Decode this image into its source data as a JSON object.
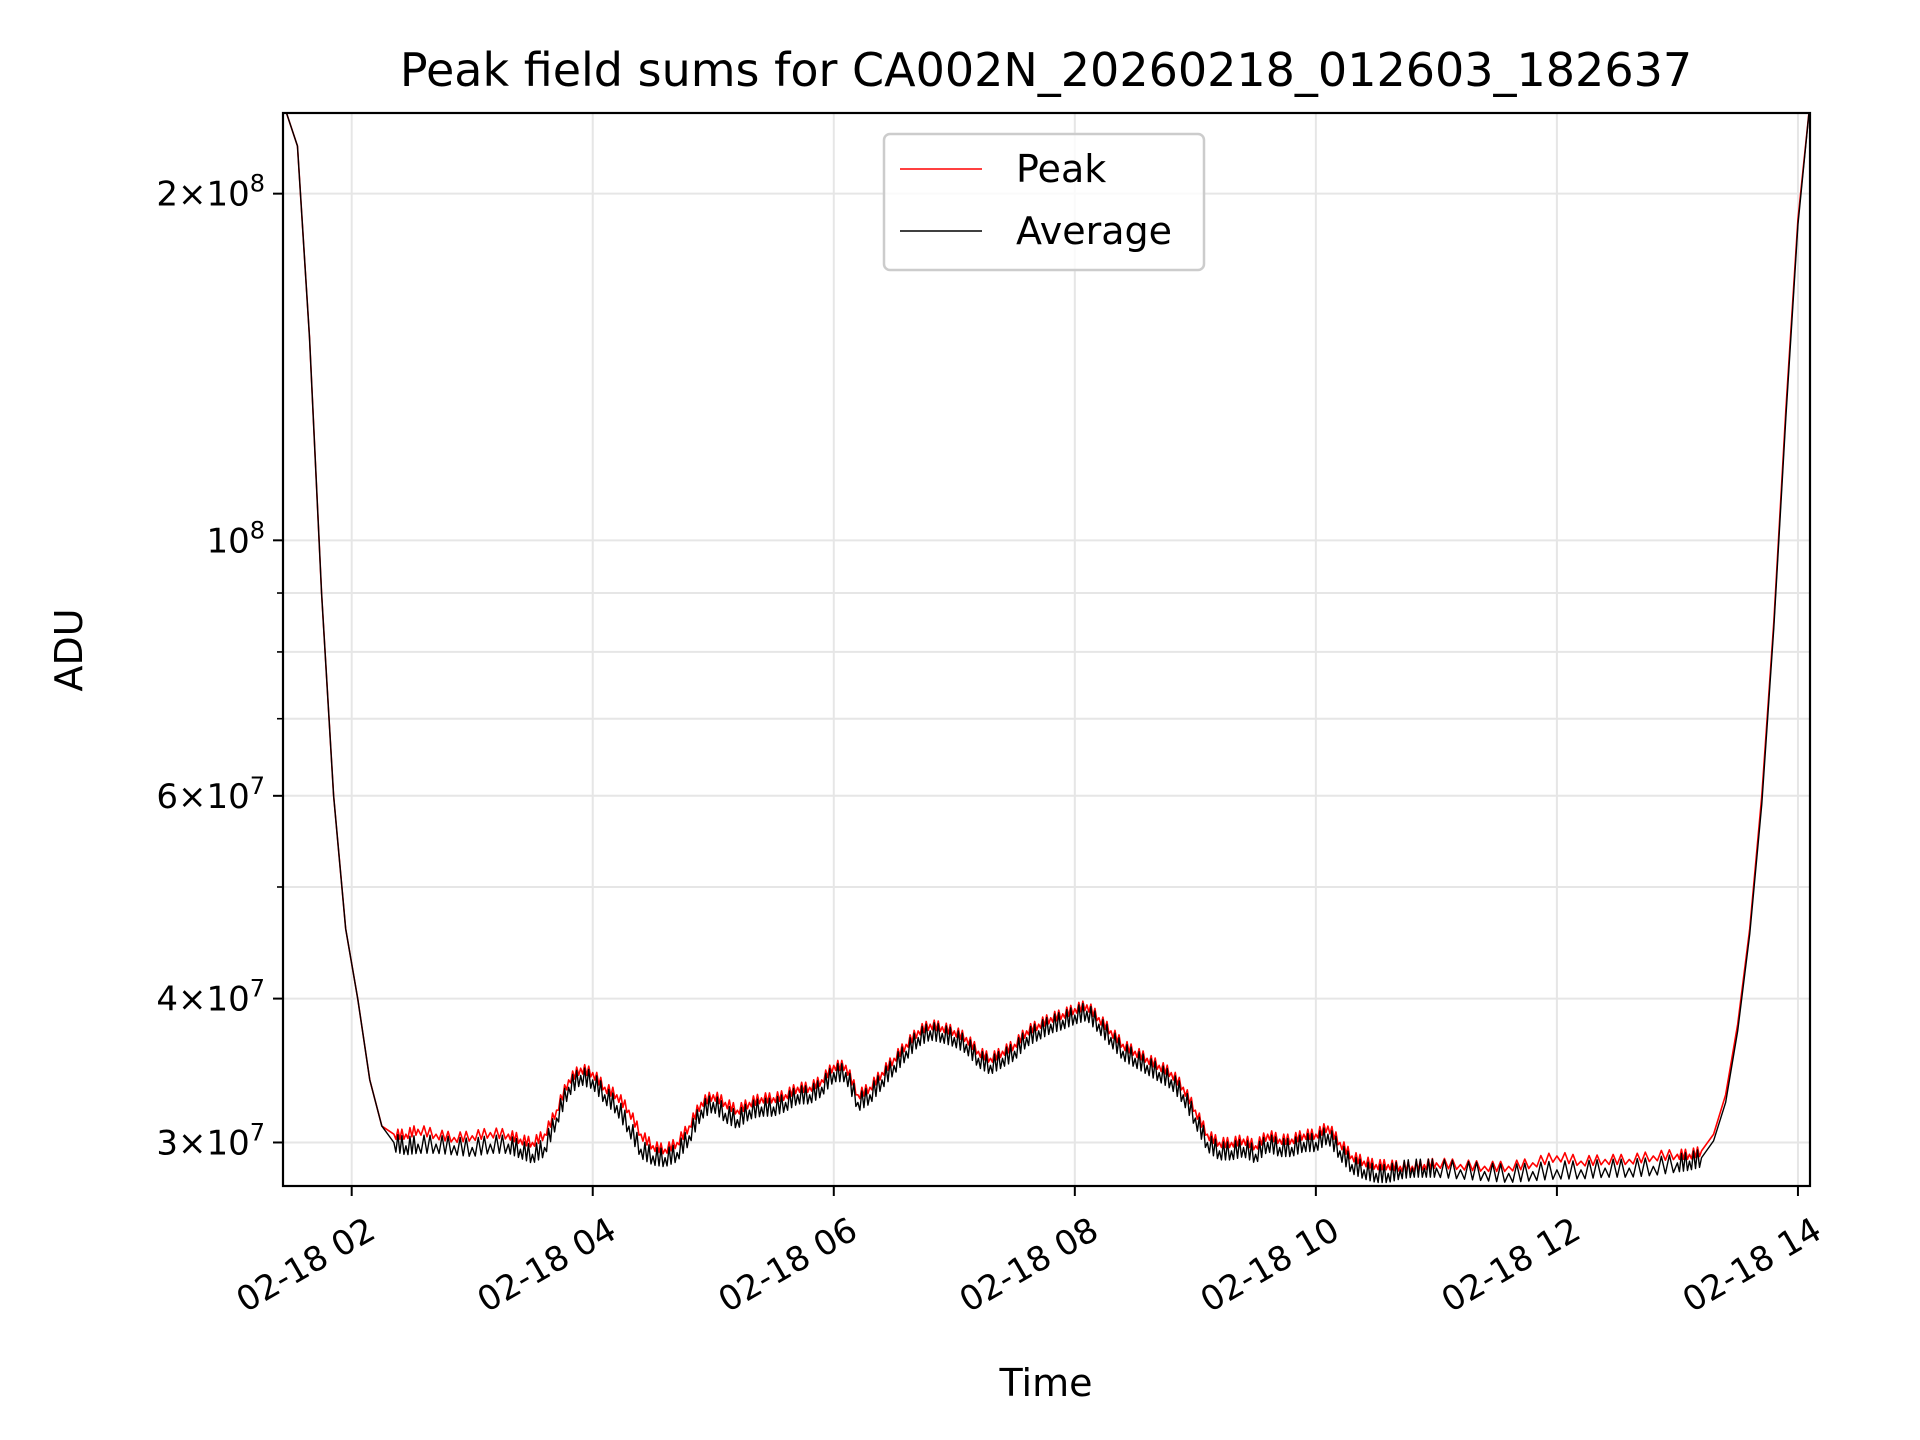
{
  "chart_data": {
    "type": "line",
    "title": "Peak field sums for CA002N_20260218_012603_182637",
    "xlabel": "Time",
    "ylabel": "ADU",
    "yscale": "log",
    "xlim_hours": [
      1.43,
      14.1
    ],
    "ylim": [
      27500000,
      235000000
    ],
    "x_ticks": [
      {
        "value": 2,
        "label": "02-18 02"
      },
      {
        "value": 4,
        "label": "02-18 04"
      },
      {
        "value": 6,
        "label": "02-18 06"
      },
      {
        "value": 8,
        "label": "02-18 08"
      },
      {
        "value": 10,
        "label": "02-18 10"
      },
      {
        "value": 12,
        "label": "02-18 12"
      },
      {
        "value": 14,
        "label": "02-18 14"
      }
    ],
    "y_ticks": [
      {
        "value": 200000000,
        "mantissa": "2",
        "exponent": "8"
      },
      {
        "value": 100000000,
        "mantissa": "",
        "exponent": "8"
      },
      {
        "value": 60000000,
        "mantissa": "6",
        "exponent": "7"
      },
      {
        "value": 40000000,
        "mantissa": "4",
        "exponent": "7"
      },
      {
        "value": 30000000,
        "mantissa": "3",
        "exponent": "7"
      }
    ],
    "y_minor_grid": [
      90000000,
      80000000,
      70000000,
      50000000
    ],
    "grid": true,
    "legend_position": "top-center",
    "series": [
      {
        "name": "Peak",
        "color": "#ff0000",
        "x": [
          1.43,
          1.55,
          1.65,
          1.75,
          1.85,
          1.95,
          2.05,
          2.15,
          2.25,
          2.35,
          2.45,
          2.55,
          2.7,
          2.85,
          3.0,
          3.15,
          3.3,
          3.4,
          3.5,
          3.6,
          3.7,
          3.8,
          3.9,
          4.0,
          4.1,
          4.2,
          4.3,
          4.4,
          4.5,
          4.6,
          4.7,
          4.8,
          4.9,
          5.0,
          5.1,
          5.2,
          5.3,
          5.4,
          5.5,
          5.6,
          5.7,
          5.8,
          5.9,
          6.0,
          6.1,
          6.2,
          6.3,
          6.4,
          6.5,
          6.6,
          6.7,
          6.8,
          6.9,
          7.0,
          7.1,
          7.2,
          7.3,
          7.4,
          7.5,
          7.6,
          7.7,
          7.8,
          7.9,
          8.0,
          8.1,
          8.2,
          8.3,
          8.4,
          8.5,
          8.6,
          8.7,
          8.8,
          8.9,
          9.0,
          9.1,
          9.2,
          9.3,
          9.4,
          9.5,
          9.6,
          9.7,
          9.8,
          9.9,
          10.0,
          10.1,
          10.2,
          10.3,
          10.4,
          10.5,
          10.6,
          10.7,
          10.8,
          10.9,
          11.0,
          11.2,
          11.4,
          11.6,
          11.8,
          12.0,
          12.2,
          12.4,
          12.6,
          12.8,
          13.0,
          13.1,
          13.2,
          13.3,
          13.4,
          13.5,
          13.6,
          13.7,
          13.8,
          13.9,
          14.0,
          14.1
        ],
        "y": [
          240000000,
          220000000,
          150000000,
          90000000,
          60000000,
          46000000,
          40000000,
          34000000,
          31000000,
          30500000,
          30500000,
          30800000,
          30500000,
          30300000,
          30400000,
          30600000,
          30500000,
          30200000,
          30000000,
          30500000,
          32000000,
          34000000,
          34800000,
          34500000,
          33500000,
          33000000,
          32000000,
          30500000,
          29800000,
          29600000,
          30000000,
          31000000,
          32500000,
          33000000,
          32500000,
          32000000,
          32500000,
          32800000,
          32800000,
          33000000,
          33500000,
          33500000,
          34000000,
          35000000,
          35000000,
          33000000,
          33500000,
          34500000,
          35500000,
          36500000,
          37500000,
          38000000,
          37800000,
          37500000,
          37000000,
          36000000,
          35500000,
          36000000,
          36500000,
          37500000,
          38000000,
          38500000,
          38800000,
          39200000,
          39500000,
          38500000,
          37500000,
          36500000,
          36000000,
          35500000,
          35000000,
          34500000,
          33500000,
          32000000,
          30500000,
          30000000,
          30000000,
          30200000,
          29800000,
          30500000,
          30200000,
          30200000,
          30500000,
          30500000,
          31000000,
          30000000,
          29200000,
          28900000,
          28700000,
          28700000,
          28600000,
          28600000,
          28700000,
          28800000,
          28700000,
          28600000,
          28600000,
          28800000,
          29200000,
          28900000,
          29000000,
          29000000,
          29200000,
          29300000,
          29300000,
          29500000,
          30500000,
          33000000,
          38000000,
          46000000,
          60000000,
          85000000,
          130000000,
          190000000,
          240000000
        ]
      },
      {
        "name": "Average",
        "color": "#000000",
        "x": [
          1.43,
          1.55,
          1.65,
          1.75,
          1.85,
          1.95,
          2.05,
          2.15,
          2.25,
          2.35,
          2.45,
          2.55,
          2.7,
          2.85,
          3.0,
          3.15,
          3.3,
          3.4,
          3.5,
          3.6,
          3.7,
          3.8,
          3.9,
          4.0,
          4.1,
          4.2,
          4.3,
          4.4,
          4.5,
          4.6,
          4.7,
          4.8,
          4.9,
          5.0,
          5.1,
          5.2,
          5.3,
          5.4,
          5.5,
          5.6,
          5.7,
          5.8,
          5.9,
          6.0,
          6.1,
          6.2,
          6.3,
          6.4,
          6.5,
          6.6,
          6.7,
          6.8,
          6.9,
          7.0,
          7.1,
          7.2,
          7.3,
          7.4,
          7.5,
          7.6,
          7.7,
          7.8,
          7.9,
          8.0,
          8.1,
          8.2,
          8.3,
          8.4,
          8.5,
          8.6,
          8.7,
          8.8,
          8.9,
          9.0,
          9.1,
          9.2,
          9.3,
          9.4,
          9.5,
          9.6,
          9.7,
          9.8,
          9.9,
          10.0,
          10.1,
          10.2,
          10.3,
          10.4,
          10.5,
          10.6,
          10.7,
          10.8,
          10.9,
          11.0,
          11.2,
          11.4,
          11.6,
          11.8,
          12.0,
          12.2,
          12.4,
          12.6,
          12.8,
          13.0,
          13.1,
          13.2,
          13.3,
          13.4,
          13.5,
          13.6,
          13.7,
          13.8,
          13.9,
          14.0,
          14.1
        ],
        "y": [
          240000000,
          220000000,
          150000000,
          90000000,
          60000000,
          46000000,
          40000000,
          34000000,
          31000000,
          30000000,
          29800000,
          29900000,
          29900000,
          29800000,
          29700000,
          29900000,
          29900000,
          29600000,
          29300000,
          29700000,
          31500000,
          33500000,
          34300000,
          34000000,
          33000000,
          32300000,
          31000000,
          29600000,
          29200000,
          29100000,
          29400000,
          30400000,
          32000000,
          32500000,
          31800000,
          31400000,
          32000000,
          32200000,
          32200000,
          32500000,
          33000000,
          33000000,
          33500000,
          34500000,
          34500000,
          32500000,
          33000000,
          34000000,
          35000000,
          36000000,
          37000000,
          37500000,
          37300000,
          37000000,
          36500000,
          35500000,
          35000000,
          35500000,
          36000000,
          37000000,
          37500000,
          38000000,
          38300000,
          38700000,
          39000000,
          38000000,
          37000000,
          36000000,
          35500000,
          35000000,
          34500000,
          34000000,
          33000000,
          31500000,
          30000000,
          29500000,
          29500000,
          29700000,
          29300000,
          30000000,
          29700000,
          29700000,
          30000000,
          30000000,
          30500000,
          29500000,
          28700000,
          28400000,
          28200000,
          28200000,
          28400000,
          28500000,
          28500000,
          28500000,
          28400000,
          28300000,
          28200000,
          28300000,
          28400000,
          28400000,
          28500000,
          28500000,
          28600000,
          28800000,
          28900000,
          29100000,
          30100000,
          32500000,
          37500000,
          45500000,
          59000000,
          84000000,
          128000000,
          188000000,
          240000000
        ]
      }
    ]
  }
}
